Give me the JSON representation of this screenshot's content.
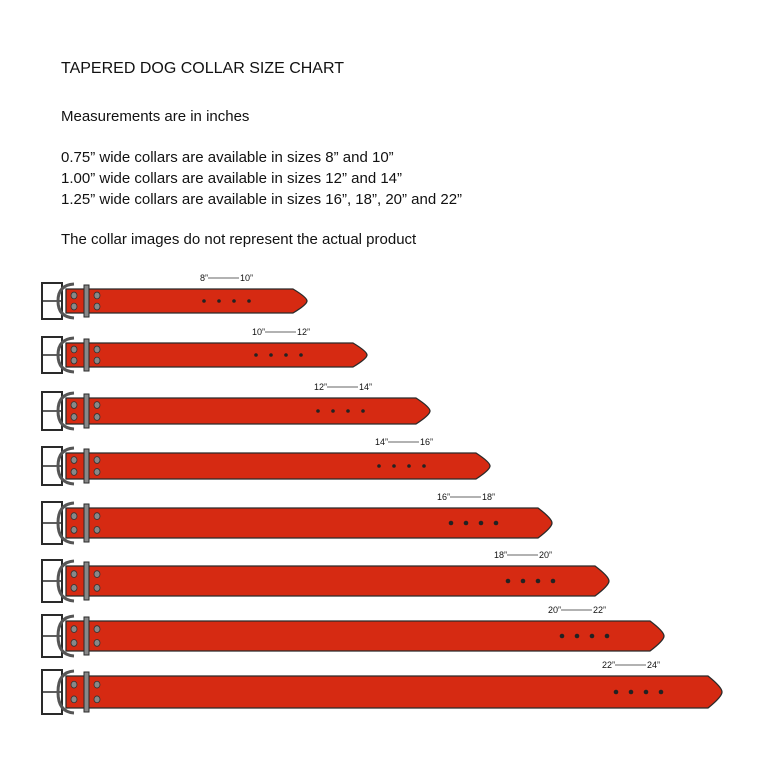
{
  "title": "TAPERED DOG COLLAR SIZE CHART",
  "units_note": "Measurements are in inches",
  "availability": [
    "0.75” wide collars are available in sizes 8” and 10”",
    "1.00” wide collars are available in sizes 12” and 14”",
    "1.25” wide collars are available in sizes 16”, 18”, 20” and 22”"
  ],
  "disclaimer": "The collar images do not represent the actual product",
  "colors": {
    "collar": "#d62a12",
    "outline": "#2a2a2a",
    "hardware": "#888888"
  },
  "collars": [
    {
      "min": "8”",
      "max": "10”"
    },
    {
      "min": "10”",
      "max": "12”"
    },
    {
      "min": "12”",
      "max": "14”"
    },
    {
      "min": "14”",
      "max": "16”"
    },
    {
      "min": "16”",
      "max": "18”"
    },
    {
      "min": "18”",
      "max": "20”"
    },
    {
      "min": "20”",
      "max": "22”"
    },
    {
      "min": "22”",
      "max": "24”"
    }
  ]
}
